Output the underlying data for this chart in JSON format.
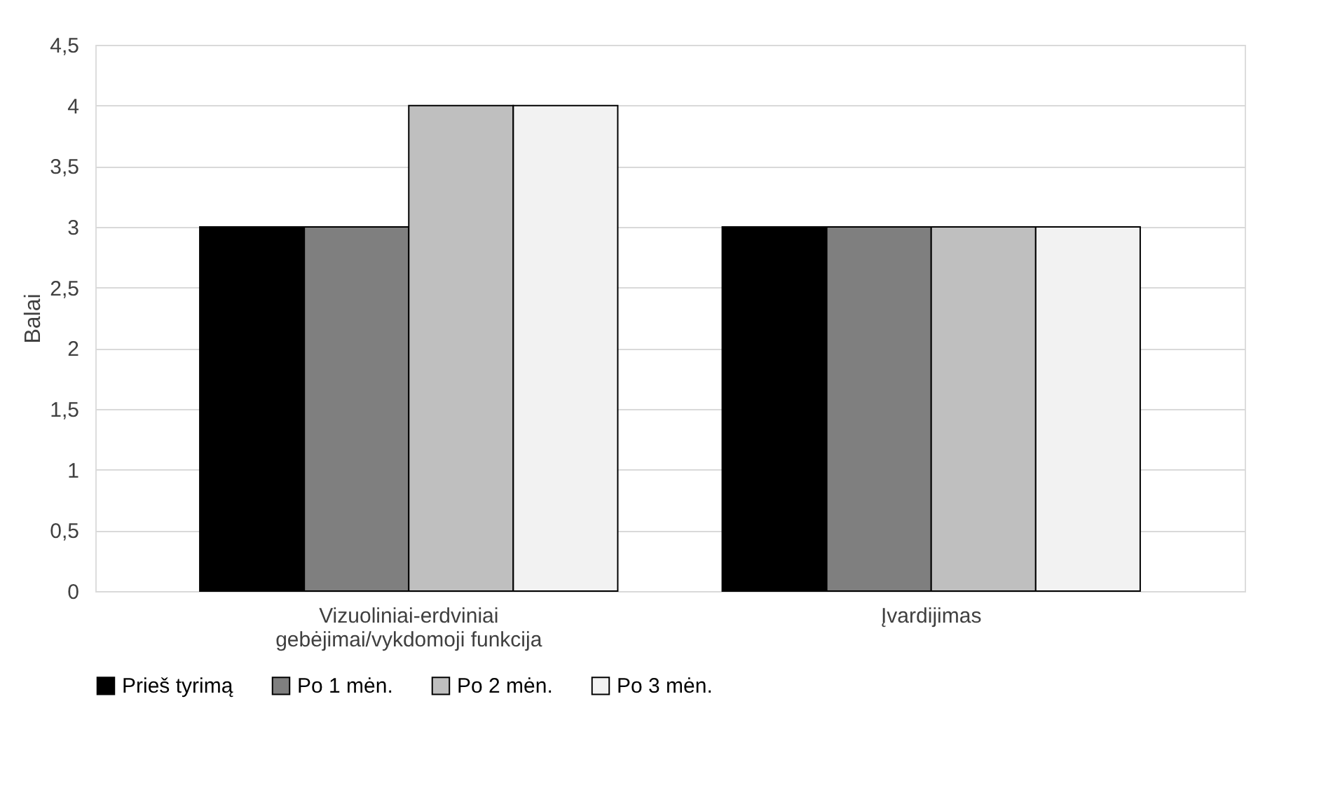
{
  "chart_data": {
    "type": "bar",
    "ylabel": "Balai",
    "categories": [
      "Vizuoliniai-erdviniai gebėjimai/vykdomoji funkcija",
      "Įvardijimas"
    ],
    "series": [
      {
        "name": "Prieš tyrimą",
        "color": "#000000",
        "values": [
          3,
          3
        ]
      },
      {
        "name": "Po 1 mėn.",
        "color": "#7f7f7f",
        "values": [
          3,
          3
        ]
      },
      {
        "name": "Po 2 mėn.",
        "color": "#bfbfbf",
        "values": [
          4,
          3
        ]
      },
      {
        "name": "Po 3 mėn.",
        "color": "#f2f2f2",
        "values": [
          4,
          3
        ]
      }
    ],
    "ylim": [
      0,
      4.5
    ],
    "yticks": [
      0,
      {
        "value": 0.5,
        "label": "0,5"
      },
      1,
      {
        "value": 1.5,
        "label": "1,5"
      },
      2,
      {
        "value": 2.5,
        "label": "2,5"
      },
      3,
      {
        "value": 3.5,
        "label": "3,5"
      },
      4,
      {
        "value": 4.5,
        "label": "4,5"
      }
    ],
    "grid": "y",
    "legend": "bottom"
  }
}
